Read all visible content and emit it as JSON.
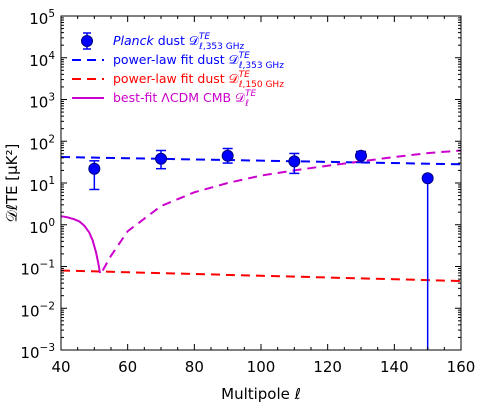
{
  "chart_data": {
    "type": "scatter",
    "xlabel": "Multipole ℓ",
    "ylabel": "𝒟ℓTE [μK²]",
    "xlim": [
      40,
      160
    ],
    "ylim": [
      0.001,
      100000
    ],
    "yscale": "log",
    "xticks": [
      40,
      60,
      80,
      100,
      120,
      140,
      160
    ],
    "yticks": [
      {
        "value": 0.001,
        "base": "10",
        "exp": "−3"
      },
      {
        "value": 0.01,
        "base": "10",
        "exp": "−2"
      },
      {
        "value": 0.1,
        "base": "10",
        "exp": "−1"
      },
      {
        "value": 1,
        "base": "10",
        "exp": "0"
      },
      {
        "value": 10,
        "base": "10",
        "exp": "1"
      },
      {
        "value": 100,
        "base": "10",
        "exp": "2"
      },
      {
        "value": 1000,
        "base": "10",
        "exp": "3"
      },
      {
        "value": 10000,
        "base": "10",
        "exp": "4"
      },
      {
        "value": 100000,
        "base": "10",
        "exp": "5"
      }
    ],
    "series": [
      {
        "name": "Planck dust 𝒟ℓ,353 GHzTE",
        "kind": "errorbar",
        "color": "#0000ff",
        "x": [
          50,
          70,
          90,
          110,
          130,
          150
        ],
        "y": [
          22,
          38,
          45,
          33,
          45,
          13
        ],
        "err_low": [
          15,
          16,
          15,
          16,
          14,
          13
        ],
        "err_high": [
          12,
          22,
          22,
          18,
          12,
          0
        ]
      },
      {
        "name": "power-law fit dust 𝒟ℓ,353 GHzTE",
        "kind": "dashed",
        "color": "#0000ff",
        "x": [
          40,
          160
        ],
        "y": [
          42,
          28
        ]
      },
      {
        "name": "power-law fit dust 𝒟ℓ,150 GHzTE",
        "kind": "dashed",
        "color": "#ff0000",
        "x": [
          40,
          160
        ],
        "y": [
          0.08,
          0.045
        ]
      },
      {
        "name": "best-fit ΛCDM CMB 𝒟ℓTE",
        "kind": "mixed",
        "color": "#cc00cc",
        "solid_part": {
          "x": [
            40,
            42,
            44,
            45.5,
            47,
            48.5,
            49.5,
            50.5,
            51.2,
            51.7
          ],
          "y": [
            1.6,
            1.5,
            1.35,
            1.2,
            0.95,
            0.65,
            0.42,
            0.22,
            0.12,
            0.07
          ]
        },
        "dashed_part": {
          "x": [
            52.5,
            55,
            60,
            70,
            80,
            90,
            100,
            110,
            120,
            130,
            140,
            150,
            160
          ],
          "y": [
            0.08,
            0.18,
            0.7,
            2.8,
            6,
            10,
            15,
            20,
            26,
            33,
            42,
            52,
            60
          ]
        }
      }
    ],
    "legend": {
      "placement": "top-left",
      "entries": [
        {
          "pre": "",
          "italic": "Planck",
          "text": " dust 𝒟",
          "sup": "TE",
          "sub": "ℓ,353 GHz",
          "color": "#0000ff",
          "marker": "errorbar"
        },
        {
          "pre": "power-law fit dust 𝒟",
          "italic": "",
          "text": "",
          "sup": "TE",
          "sub": "ℓ,353 GHz",
          "color": "#0000ff",
          "marker": "dashed"
        },
        {
          "pre": "power-law fit dust 𝒟",
          "italic": "",
          "text": "",
          "sup": "TE",
          "sub": "ℓ,150 GHz",
          "color": "#ff0000",
          "marker": "dashed"
        },
        {
          "pre": "best-fit ΛCDM CMB 𝒟",
          "italic": "",
          "text": "",
          "sup": "TE",
          "sub": "ℓ",
          "color": "#cc00cc",
          "marker": "solid"
        }
      ]
    },
    "grid": false
  }
}
